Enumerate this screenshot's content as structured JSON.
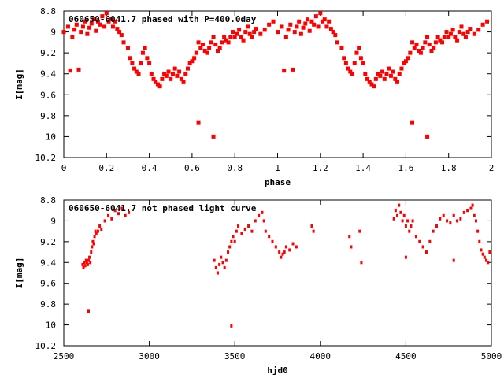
{
  "chart_data": [
    {
      "type": "scatter",
      "title": "060650-6041.7 phased with P=400.0day",
      "xlabel": "phase",
      "ylabel": "I[mag]",
      "xlim": [
        0,
        2
      ],
      "ylim": [
        10.2,
        8.8
      ],
      "y_inverted": true,
      "x_ticks": [
        "0",
        "0.2",
        "0.4",
        "0.6",
        "0.8",
        "1",
        "1.2",
        "1.4",
        "1.6",
        "1.8",
        "2"
      ],
      "y_ticks": [
        "8.8",
        "9",
        "9.2",
        "9.4",
        "9.6",
        "9.8",
        "10",
        "10.2"
      ],
      "grid": false,
      "marker_color": "#ff0000",
      "series": [
        {
          "x": [
            0.0,
            0.02,
            0.04,
            0.05,
            0.06,
            0.08,
            0.09,
            0.1,
            0.11,
            0.12,
            0.13,
            0.14,
            0.15,
            0.16,
            0.17,
            0.18,
            0.19,
            0.2,
            0.21,
            0.22,
            0.23,
            0.24,
            0.25,
            0.26,
            0.27,
            0.28,
            0.03,
            0.07,
            0.3,
            0.31,
            0.32,
            0.33,
            0.34,
            0.35,
            0.36,
            0.37,
            0.38,
            0.39,
            0.4,
            0.41,
            0.42,
            0.43,
            0.44,
            0.45,
            0.46,
            0.47,
            0.48,
            0.49,
            0.5,
            0.51,
            0.52,
            0.53,
            0.54,
            0.55,
            0.56,
            0.57,
            0.58,
            0.59,
            0.6,
            0.61,
            0.62,
            0.63,
            0.64,
            0.65,
            0.66,
            0.67,
            0.68,
            0.69,
            0.7,
            0.71,
            0.72,
            0.73,
            0.74,
            0.75,
            0.76,
            0.77,
            0.78,
            0.79,
            0.8,
            0.81,
            0.82,
            0.83,
            0.84,
            0.85,
            0.86,
            0.87,
            0.88,
            0.89,
            0.9,
            0.92,
            0.94,
            0.96,
            0.98,
            0.63,
            0.7
          ],
          "y": [
            9.0,
            8.95,
            9.05,
            8.98,
            8.93,
            9.0,
            8.95,
            8.9,
            9.02,
            8.96,
            8.92,
            8.88,
            8.99,
            8.9,
            8.93,
            8.85,
            8.95,
            8.82,
            8.9,
            8.88,
            8.95,
            8.9,
            8.97,
            9.0,
            9.03,
            9.1,
            9.37,
            9.36,
            9.15,
            9.25,
            9.3,
            9.35,
            9.38,
            9.4,
            9.3,
            9.2,
            9.15,
            9.25,
            9.3,
            9.4,
            9.45,
            9.48,
            9.5,
            9.52,
            9.45,
            9.4,
            9.42,
            9.38,
            9.45,
            9.4,
            9.35,
            9.42,
            9.38,
            9.45,
            9.48,
            9.4,
            9.35,
            9.3,
            9.28,
            9.25,
            9.2,
            9.1,
            9.15,
            9.12,
            9.18,
            9.2,
            9.15,
            9.1,
            9.05,
            9.12,
            9.18,
            9.15,
            9.1,
            9.05,
            9.08,
            9.1,
            9.05,
            9.0,
            9.05,
            9.02,
            8.98,
            9.05,
            9.08,
            9.0,
            8.95,
            9.02,
            9.05,
            9.0,
            8.97,
            9.02,
            8.98,
            8.93,
            8.9,
            9.87,
            10.0
          ]
        }
      ]
    },
    {
      "type": "scatter",
      "title": "060650-6041.7 not phased light curve",
      "xlabel": "hjd0",
      "ylabel": "I[mag]",
      "xlim": [
        2500,
        5000
      ],
      "ylim": [
        10.2,
        8.8
      ],
      "y_inverted": true,
      "x_ticks": [
        "2500",
        "3000",
        "3500",
        "4000",
        "4500",
        "5000"
      ],
      "y_ticks": [
        "8.8",
        "9",
        "9.2",
        "9.4",
        "9.6",
        "9.8",
        "10",
        "10.2"
      ],
      "grid": false,
      "marker_color": "#ff0000",
      "series": [
        {
          "x": [
            2610,
            2615,
            2620,
            2625,
            2630,
            2635,
            2640,
            2645,
            2650,
            2655,
            2660,
            2665,
            2670,
            2675,
            2680,
            2685,
            2690,
            2700,
            2710,
            2720,
            2740,
            2760,
            2780,
            2800,
            2820,
            2840,
            2860,
            2880,
            2645,
            3380,
            3390,
            3400,
            3410,
            3420,
            3430,
            3440,
            3450,
            3460,
            3470,
            3480,
            3490,
            3500,
            3510,
            3520,
            3540,
            3560,
            3580,
            3600,
            3620,
            3640,
            3660,
            3670,
            3680,
            3700,
            3720,
            3740,
            3760,
            3770,
            3780,
            3790,
            3800,
            3820,
            3840,
            3860,
            3480,
            3950,
            3960,
            4170,
            4180,
            4230,
            4240,
            4430,
            4440,
            4450,
            4460,
            4470,
            4480,
            4490,
            4500,
            4510,
            4520,
            4530,
            4540,
            4560,
            4580,
            4600,
            4620,
            4640,
            4660,
            4680,
            4700,
            4720,
            4740,
            4760,
            4780,
            4800,
            4820,
            4840,
            4860,
            4880,
            4890,
            4900,
            4910,
            4920,
            4930,
            4940,
            4950,
            4960,
            4970,
            4980,
            4990,
            4500,
            4780
          ],
          "y": [
            9.42,
            9.45,
            9.4,
            9.43,
            9.38,
            9.4,
            9.42,
            9.38,
            9.35,
            9.4,
            9.3,
            9.25,
            9.2,
            9.22,
            9.15,
            9.1,
            9.12,
            9.1,
            9.05,
            9.08,
            9.0,
            8.95,
            8.98,
            8.9,
            8.93,
            8.88,
            8.95,
            8.92,
            9.87,
            9.38,
            9.45,
            9.5,
            9.42,
            9.35,
            9.4,
            9.45,
            9.38,
            9.3,
            9.25,
            9.2,
            9.15,
            9.2,
            9.1,
            9.05,
            9.12,
            9.08,
            9.05,
            9.1,
            9.0,
            8.95,
            8.92,
            9.0,
            9.1,
            9.15,
            9.2,
            9.25,
            9.3,
            9.35,
            9.32,
            9.3,
            9.25,
            9.28,
            9.22,
            9.25,
            10.01,
            9.05,
            9.1,
            9.15,
            9.25,
            9.1,
            9.4,
            8.98,
            8.9,
            8.95,
            8.85,
            8.92,
            9.0,
            8.95,
            9.05,
            9.0,
            9.1,
            9.05,
            9.0,
            9.15,
            9.2,
            9.25,
            9.3,
            9.2,
            9.1,
            9.05,
            8.98,
            8.95,
            9.0,
            9.02,
            8.95,
            9.0,
            8.98,
            8.92,
            8.9,
            8.88,
            8.85,
            8.95,
            9.0,
            9.1,
            9.2,
            9.28,
            9.32,
            9.35,
            9.38,
            9.4,
            9.3,
            9.35,
            9.38
          ]
        }
      ]
    }
  ]
}
